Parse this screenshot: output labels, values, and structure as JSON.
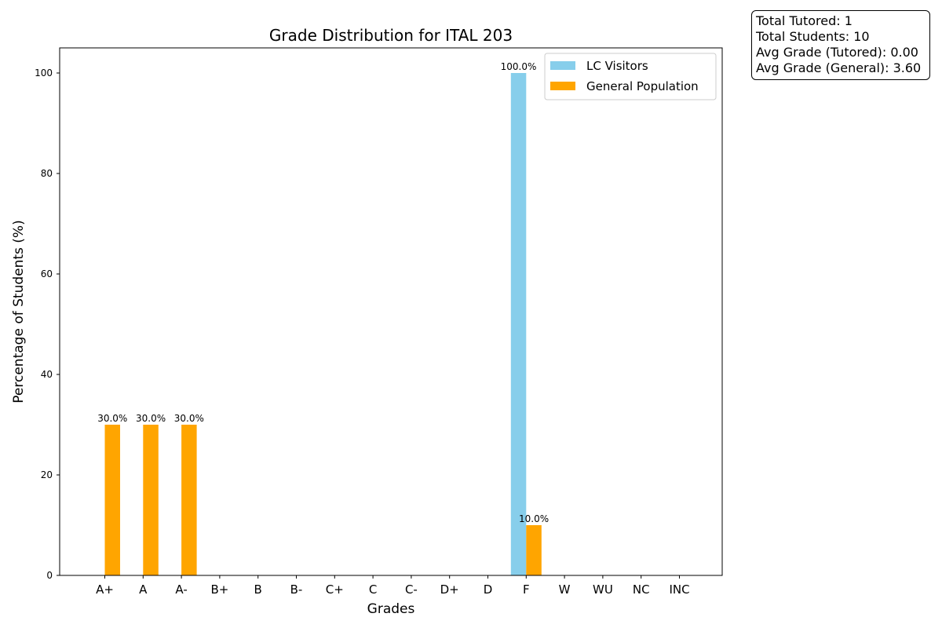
{
  "chart_data": {
    "type": "bar",
    "title": "Grade Distribution for ITAL 203",
    "xlabel": "Grades",
    "ylabel": "Percentage of Students (%)",
    "ylim": [
      0,
      105
    ],
    "yticks": [
      0,
      20,
      40,
      60,
      80,
      100
    ],
    "grid": false,
    "legend_position": "top-right",
    "categories": [
      "A+",
      "A",
      "A-",
      "B+",
      "B",
      "B-",
      "C+",
      "C",
      "C-",
      "D+",
      "D",
      "F",
      "W",
      "WU",
      "NC",
      "INC"
    ],
    "series": [
      {
        "name": "LC Visitors",
        "color": "#87ceeb",
        "values": [
          0,
          0,
          0,
          0,
          0,
          0,
          0,
          0,
          0,
          0,
          0,
          100,
          0,
          0,
          0,
          0
        ],
        "labels": [
          "",
          "",
          "",
          "",
          "",
          "",
          "",
          "",
          "",
          "",
          "",
          "100.0%",
          "",
          "",
          "",
          ""
        ]
      },
      {
        "name": "General Population",
        "color": "#ffa500",
        "values": [
          30,
          30,
          30,
          0,
          0,
          0,
          0,
          0,
          0,
          0,
          0,
          10,
          0,
          0,
          0,
          0
        ],
        "labels": [
          "30.0%",
          "30.0%",
          "30.0%",
          "",
          "",
          "",
          "",
          "",
          "",
          "",
          "",
          "10.0%",
          "",
          "",
          "",
          ""
        ]
      }
    ]
  },
  "stats": {
    "total_tutored": "Total Tutored: 1",
    "total_students": "Total Students: 10",
    "avg_tutored": "Avg Grade (Tutored): 0.00",
    "avg_general": "Avg Grade (General): 3.60"
  }
}
